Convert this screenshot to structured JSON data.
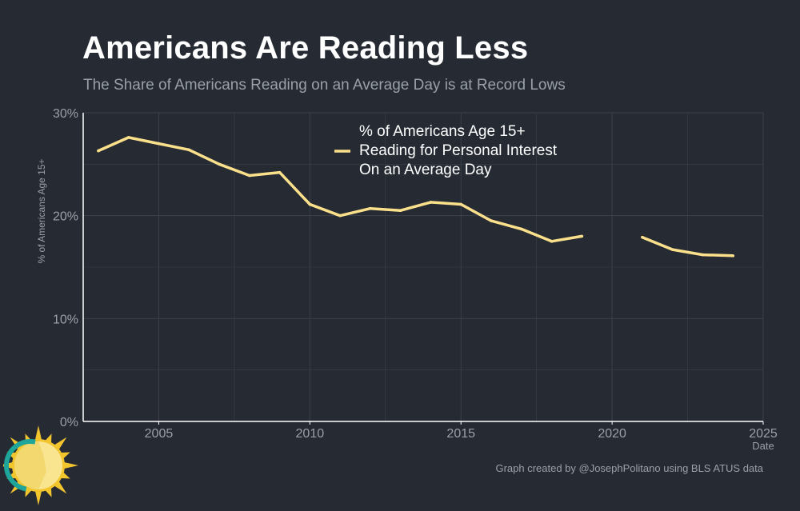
{
  "header": {
    "title": "Americans Are Reading Less",
    "subtitle": "The Share of Americans Reading on an Average Day is at Record Lows"
  },
  "caption": "Graph created by @JosephPolitano using BLS ATUS data",
  "colors": {
    "background": "#252a33",
    "line": "#fbe08c",
    "grid": "#3b414b",
    "axis": "#ffffff"
  },
  "logo_icon": "sun-icon",
  "chart_data": {
    "type": "line",
    "title": "Americans Are Reading Less",
    "subtitle": "The Share of Americans Reading on an Average Day is at Record Lows",
    "xlabel": "Date",
    "ylabel": "% of Americans Age 15+",
    "xlim": [
      2002.5,
      2025
    ],
    "ylim": [
      0,
      30
    ],
    "x_ticks": [
      2005,
      2010,
      2015,
      2020,
      2025
    ],
    "x_tick_labels": [
      "2005",
      "2010",
      "2015",
      "2020",
      "2025"
    ],
    "y_ticks": [
      0,
      10,
      20,
      30
    ],
    "y_tick_labels": [
      "0%",
      "10%",
      "20%",
      "30%"
    ],
    "grid": true,
    "legend_position": "top-center",
    "series": [
      {
        "name": "% of Americans Age 15+ Reading for Personal Interest On an Average Day",
        "legend_lines": [
          "% of Americans Age 15+",
          "Reading for Personal Interest",
          "On an Average Day"
        ],
        "color": "#fbe08c",
        "x": [
          2003,
          2004,
          2005,
          2006,
          2007,
          2008,
          2009,
          2010,
          2011,
          2012,
          2013,
          2014,
          2015,
          2016,
          2017,
          2018,
          2019,
          2020,
          2021,
          2022,
          2023,
          2024
        ],
        "y": [
          26.3,
          27.6,
          27.0,
          26.4,
          25.0,
          23.9,
          24.2,
          21.1,
          20.0,
          20.7,
          20.5,
          21.3,
          21.1,
          19.5,
          18.7,
          17.5,
          18.0,
          null,
          17.9,
          16.7,
          16.2,
          16.1
        ]
      }
    ]
  }
}
